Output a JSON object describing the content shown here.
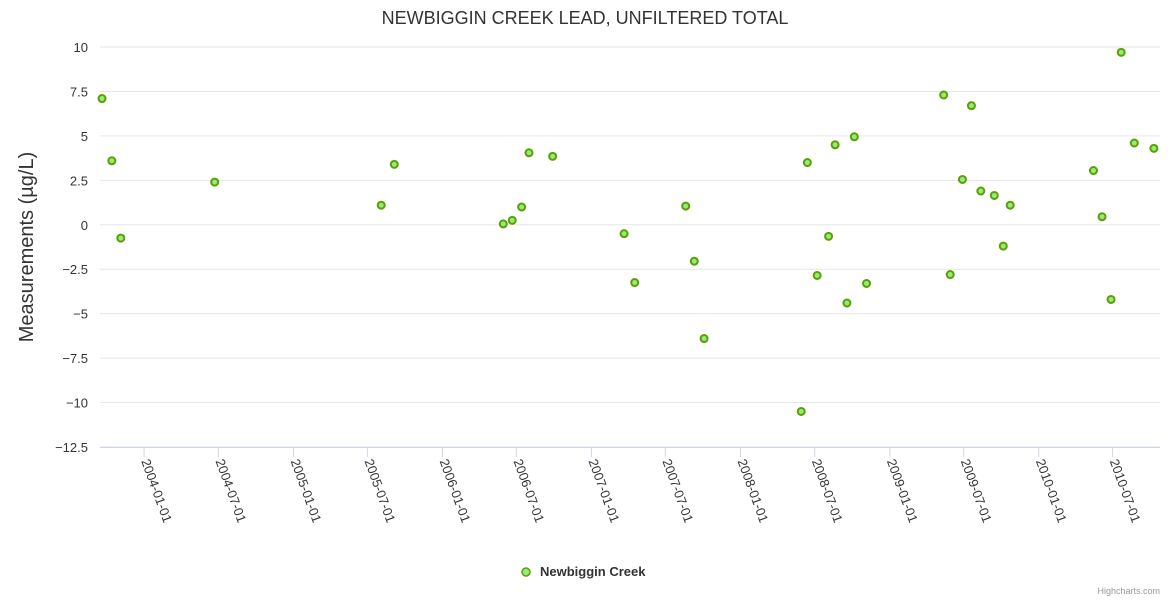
{
  "chart_data": {
    "type": "scatter",
    "title": "NEWBIGGIN CREEK LEAD, UNFILTERED TOTAL",
    "xlabel": "",
    "ylabel": "Measurements (µg/L)",
    "ylim": [
      -12.5,
      10
    ],
    "yticks": [
      "10",
      "7.5",
      "5",
      "2.5",
      "0",
      "−2.5",
      "−5",
      "−7.5",
      "−10",
      "−12.5"
    ],
    "xlim": [
      "2003-09-15",
      "2010-10-25"
    ],
    "xticks": [
      "2004-01-01",
      "2004-07-01",
      "2005-01-01",
      "2005-07-01",
      "2006-01-01",
      "2006-07-01",
      "2007-01-01",
      "2007-07-01",
      "2008-01-01",
      "2008-07-01",
      "2009-01-01",
      "2009-07-01",
      "2010-01-01",
      "2010-07-01"
    ],
    "grid": true,
    "legend": "bottom-center",
    "colors": {
      "marker": "#90ed7d",
      "marker_stroke": "#5d9e00"
    },
    "series": [
      {
        "name": "Newbiggin Creek",
        "points": [
          {
            "x": "2003-09-20",
            "y": 7.1
          },
          {
            "x": "2003-10-14",
            "y": 3.6
          },
          {
            "x": "2003-11-05",
            "y": -0.75
          },
          {
            "x": "2004-06-22",
            "y": 2.4
          },
          {
            "x": "2005-08-04",
            "y": 1.1
          },
          {
            "x": "2005-09-05",
            "y": 3.4
          },
          {
            "x": "2006-05-30",
            "y": 0.05
          },
          {
            "x": "2006-06-21",
            "y": 0.25
          },
          {
            "x": "2006-07-14",
            "y": 1.0
          },
          {
            "x": "2006-08-01",
            "y": 4.05
          },
          {
            "x": "2006-09-28",
            "y": 3.85
          },
          {
            "x": "2007-03-22",
            "y": -0.5
          },
          {
            "x": "2007-04-17",
            "y": -3.25
          },
          {
            "x": "2007-08-20",
            "y": 1.05
          },
          {
            "x": "2007-09-10",
            "y": -2.05
          },
          {
            "x": "2007-10-04",
            "y": -6.4
          },
          {
            "x": "2008-05-29",
            "y": -10.5
          },
          {
            "x": "2008-06-13",
            "y": 3.5
          },
          {
            "x": "2008-07-07",
            "y": -2.85
          },
          {
            "x": "2008-08-04",
            "y": -0.65
          },
          {
            "x": "2008-08-20",
            "y": 4.5
          },
          {
            "x": "2008-09-18",
            "y": -4.4
          },
          {
            "x": "2008-10-06",
            "y": 4.95
          },
          {
            "x": "2008-11-05",
            "y": -3.3
          },
          {
            "x": "2009-05-13",
            "y": 7.3
          },
          {
            "x": "2009-05-29",
            "y": -2.8
          },
          {
            "x": "2009-06-28",
            "y": 2.55
          },
          {
            "x": "2009-07-20",
            "y": 6.7
          },
          {
            "x": "2009-08-12",
            "y": 1.9
          },
          {
            "x": "2009-09-14",
            "y": 1.65
          },
          {
            "x": "2009-10-06",
            "y": -1.2
          },
          {
            "x": "2009-10-23",
            "y": 1.1
          },
          {
            "x": "2010-05-15",
            "y": 3.05
          },
          {
            "x": "2010-06-05",
            "y": 0.45
          },
          {
            "x": "2010-06-27",
            "y": -4.2
          },
          {
            "x": "2010-07-22",
            "y": 9.7
          },
          {
            "x": "2010-08-23",
            "y": 4.6
          },
          {
            "x": "2010-10-10",
            "y": 4.3
          }
        ]
      }
    ],
    "credits": "Highcharts.com"
  }
}
